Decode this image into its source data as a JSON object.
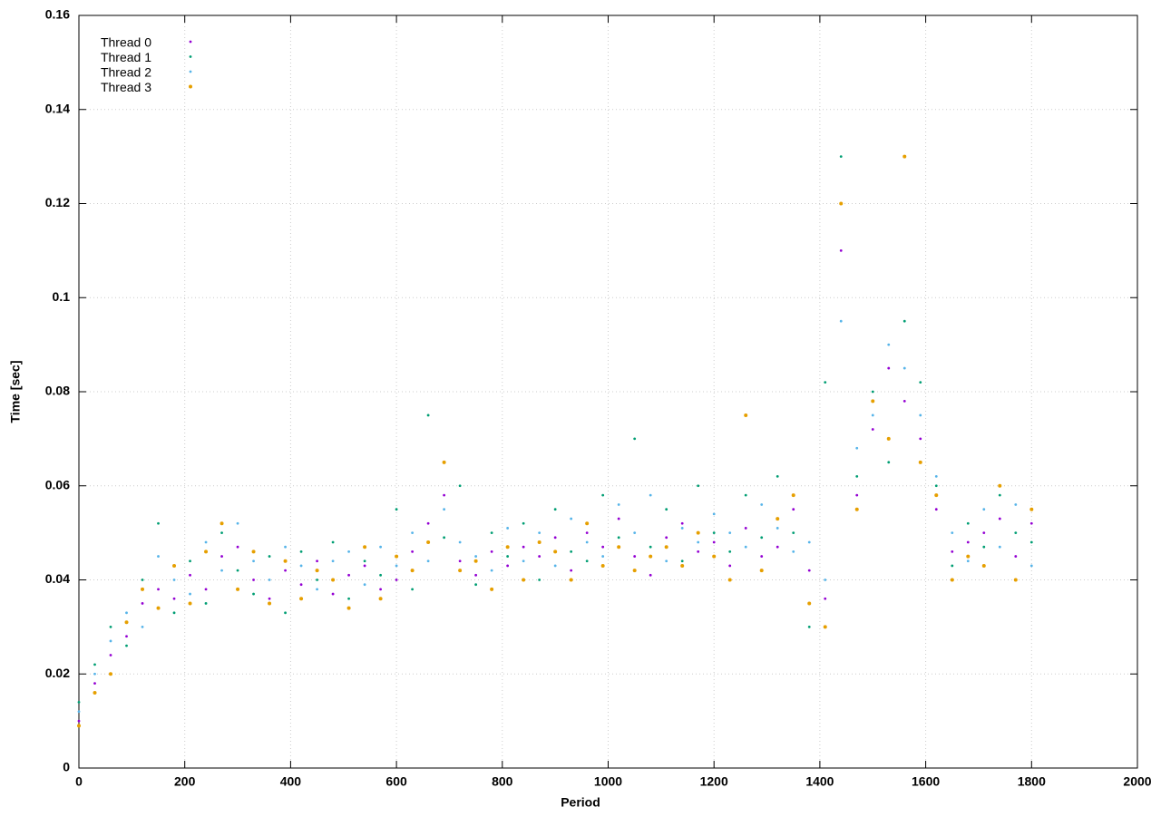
{
  "chart_data": {
    "type": "scatter",
    "xlabel": "Period",
    "ylabel": "Time [sec]",
    "x": [
      0,
      30,
      60,
      90,
      120,
      150,
      180,
      210,
      240,
      270,
      300,
      330,
      360,
      390,
      420,
      450,
      480,
      510,
      540,
      570,
      600,
      630,
      660,
      690,
      720,
      750,
      780,
      810,
      840,
      870,
      900,
      930,
      960,
      990,
      1020,
      1050,
      1080,
      1110,
      1140,
      1170,
      1200,
      1230,
      1260,
      1290,
      1320,
      1350,
      1380,
      1410,
      1440,
      1470,
      1500,
      1530,
      1560,
      1590,
      1620,
      1650,
      1680,
      1710,
      1740,
      1770,
      1800
    ],
    "series": [
      {
        "name": "Thread 0",
        "color": "#9400d3",
        "values": [
          0.01,
          0.018,
          0.024,
          0.028,
          0.035,
          0.038,
          0.036,
          0.041,
          0.038,
          0.045,
          0.047,
          0.04,
          0.036,
          0.042,
          0.039,
          0.044,
          0.037,
          0.041,
          0.043,
          0.038,
          0.04,
          0.046,
          0.052,
          0.058,
          0.044,
          0.041,
          0.046,
          0.043,
          0.047,
          0.045,
          0.049,
          0.042,
          0.05,
          0.047,
          0.053,
          0.045,
          0.041,
          0.049,
          0.052,
          0.046,
          0.048,
          0.043,
          0.051,
          0.045,
          0.047,
          0.055,
          0.042,
          0.036,
          0.11,
          0.058,
          0.072,
          0.085,
          0.078,
          0.07,
          0.055,
          0.046,
          0.048,
          0.05,
          0.053,
          0.045,
          0.052
        ]
      },
      {
        "name": "Thread 1",
        "color": "#009e73",
        "values": [
          0.014,
          0.022,
          0.03,
          0.026,
          0.04,
          0.052,
          0.033,
          0.044,
          0.035,
          0.05,
          0.042,
          0.037,
          0.045,
          0.033,
          0.046,
          0.04,
          0.048,
          0.036,
          0.044,
          0.041,
          0.055,
          0.038,
          0.075,
          0.049,
          0.06,
          0.039,
          0.05,
          0.045,
          0.052,
          0.04,
          0.055,
          0.046,
          0.044,
          0.058,
          0.049,
          0.07,
          0.047,
          0.055,
          0.044,
          0.06,
          0.05,
          0.046,
          0.058,
          0.049,
          0.062,
          0.05,
          0.03,
          0.082,
          0.13,
          0.062,
          0.08,
          0.065,
          0.095,
          0.082,
          0.06,
          0.043,
          0.052,
          0.047,
          0.058,
          0.05,
          0.048
        ]
      },
      {
        "name": "Thread 2",
        "color": "#56b4e9",
        "values": [
          0.012,
          0.02,
          0.027,
          0.033,
          0.03,
          0.045,
          0.04,
          0.037,
          0.048,
          0.042,
          0.052,
          0.044,
          0.04,
          0.047,
          0.043,
          0.038,
          0.044,
          0.046,
          0.039,
          0.047,
          0.043,
          0.05,
          0.044,
          0.055,
          0.048,
          0.045,
          0.042,
          0.051,
          0.044,
          0.05,
          0.043,
          0.053,
          0.048,
          0.045,
          0.056,
          0.05,
          0.058,
          0.044,
          0.051,
          0.048,
          0.054,
          0.05,
          0.047,
          0.056,
          0.051,
          0.046,
          0.048,
          0.04,
          0.095,
          0.068,
          0.075,
          0.09,
          0.085,
          0.075,
          0.062,
          0.05,
          0.044,
          0.055,
          0.047,
          0.056,
          0.043
        ]
      },
      {
        "name": "Thread 3",
        "color": "#e69f00",
        "values": [
          0.009,
          0.016,
          0.02,
          0.031,
          0.038,
          0.034,
          0.043,
          0.035,
          0.046,
          0.052,
          0.038,
          0.046,
          0.035,
          0.044,
          0.036,
          0.042,
          0.04,
          0.034,
          0.047,
          0.036,
          0.045,
          0.042,
          0.048,
          0.065,
          0.042,
          0.044,
          0.038,
          0.047,
          0.04,
          0.048,
          0.046,
          0.04,
          0.052,
          0.043,
          0.047,
          0.042,
          0.045,
          0.047,
          0.043,
          0.05,
          0.045,
          0.04,
          0.075,
          0.042,
          0.053,
          0.058,
          0.035,
          0.03,
          0.12,
          0.055,
          0.078,
          0.07,
          0.13,
          0.065,
          0.058,
          0.04,
          0.045,
          0.043,
          0.06,
          0.04,
          0.055
        ]
      }
    ],
    "xlim": [
      0,
      2000
    ],
    "xticks": [
      0,
      200,
      400,
      600,
      800,
      1000,
      1200,
      1400,
      1600,
      1800,
      2000
    ],
    "ylim": [
      0,
      0.16
    ],
    "yticks": [
      0,
      0.02,
      0.04,
      0.06,
      0.08,
      0.1,
      0.12,
      0.14,
      0.16
    ],
    "grid": true,
    "legend": "top-left"
  }
}
